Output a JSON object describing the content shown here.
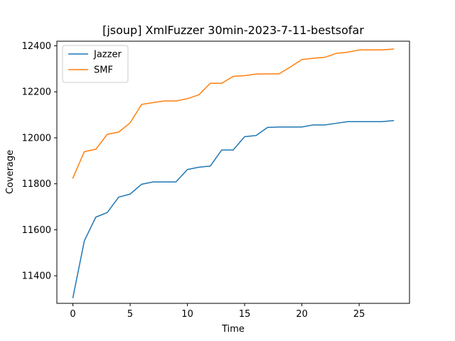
{
  "chart_data": {
    "type": "line",
    "title": "[jsoup] XmlFuzzer 30min-2023-7-11-bestsofar",
    "xlabel": "Time",
    "ylabel": "Coverage",
    "xlim": [
      -1.4,
      29.4
    ],
    "ylim": [
      11280,
      12420
    ],
    "x_ticks": [
      0,
      5,
      10,
      15,
      20,
      25
    ],
    "y_ticks": [
      11400,
      11600,
      11800,
      12000,
      12200,
      12400
    ],
    "grid": false,
    "legend_position": "top-left",
    "x": [
      0,
      1,
      2,
      3,
      4,
      5,
      6,
      7,
      8,
      9,
      10,
      11,
      12,
      13,
      14,
      15,
      16,
      17,
      18,
      19,
      20,
      21,
      22,
      23,
      24,
      25,
      26,
      27,
      28
    ],
    "series": [
      {
        "name": "Jazzer",
        "color": "#1f77b4",
        "values": [
          11305,
          11552,
          11655,
          11675,
          11742,
          11755,
          11798,
          11808,
          11808,
          11808,
          11862,
          11872,
          11877,
          11947,
          11947,
          12005,
          12010,
          12045,
          12047,
          12047,
          12047,
          12056,
          12056,
          12063,
          12070,
          12070,
          12070,
          12070,
          12075
        ]
      },
      {
        "name": "SMF",
        "color": "#ff7f0e",
        "values": [
          11825,
          11940,
          11950,
          12015,
          12025,
          12065,
          12145,
          12153,
          12160,
          12160,
          12170,
          12187,
          12237,
          12237,
          12267,
          12270,
          12277,
          12278,
          12278,
          12308,
          12340,
          12346,
          12350,
          12367,
          12372,
          12382,
          12382,
          12382,
          12386
        ]
      }
    ]
  }
}
